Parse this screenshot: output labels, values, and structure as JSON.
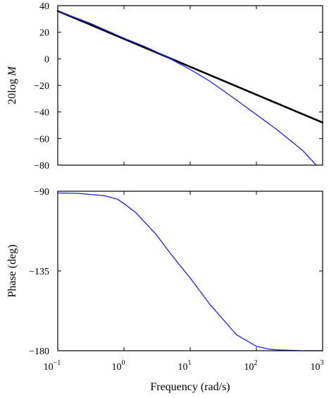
{
  "chart_data": [
    {
      "type": "line",
      "title": "",
      "xlabel": "",
      "ylabel_prefix": "20log",
      "ylabel_var": "M",
      "xscale": "log",
      "xlim": [
        0.1,
        1000
      ],
      "ylim": [
        -80,
        40
      ],
      "yticks": [
        40,
        20,
        0,
        -20,
        -40,
        -60,
        -80
      ],
      "ytick_labels": [
        "40",
        "20",
        "0",
        "−20",
        "−40",
        "−60",
        "−80"
      ],
      "grid": false,
      "series": [
        {
          "color": "#000000",
          "x": [
            0.1,
            1000
          ],
          "y": [
            36,
            -48
          ]
        },
        {
          "color": "#1f1fff",
          "x": [
            0.1,
            0.3,
            1,
            2,
            3,
            5,
            10,
            20,
            50,
            100,
            200,
            500,
            800
          ],
          "y": [
            36,
            27,
            15.5,
            9.5,
            5.5,
            0,
            -8,
            -17,
            -31,
            -42,
            -53,
            -69,
            -80
          ]
        }
      ]
    },
    {
      "type": "line",
      "title": "",
      "xlabel": "Frequency  (rad/s)",
      "ylabel": "Phase  (deg)",
      "xscale": "log",
      "xlim": [
        0.1,
        1000
      ],
      "ylim": [
        -180,
        -90
      ],
      "yticks": [
        -90,
        -135,
        -180
      ],
      "ytick_labels": [
        "−90",
        "−135",
        "−180"
      ],
      "xtick_labels": [
        {
          "base": "10",
          "exp": "−1"
        },
        {
          "base": "10",
          "exp": "0"
        },
        {
          "base": "10",
          "exp": "1"
        },
        {
          "base": "10",
          "exp": "2"
        },
        {
          "base": "10",
          "exp": "3"
        }
      ],
      "grid": false,
      "series": [
        {
          "color": "#1f1fff",
          "x": [
            0.1,
            0.2,
            0.5,
            0.8,
            1,
            1.5,
            2,
            3,
            5,
            10,
            20,
            50,
            100,
            150,
            200,
            500,
            1000
          ],
          "y": [
            -91,
            -91.2,
            -92.5,
            -94.5,
            -97,
            -102,
            -107,
            -114,
            -125,
            -139,
            -154,
            -171,
            -177.5,
            -179,
            -179.5,
            -180,
            -180
          ]
        }
      ]
    }
  ]
}
